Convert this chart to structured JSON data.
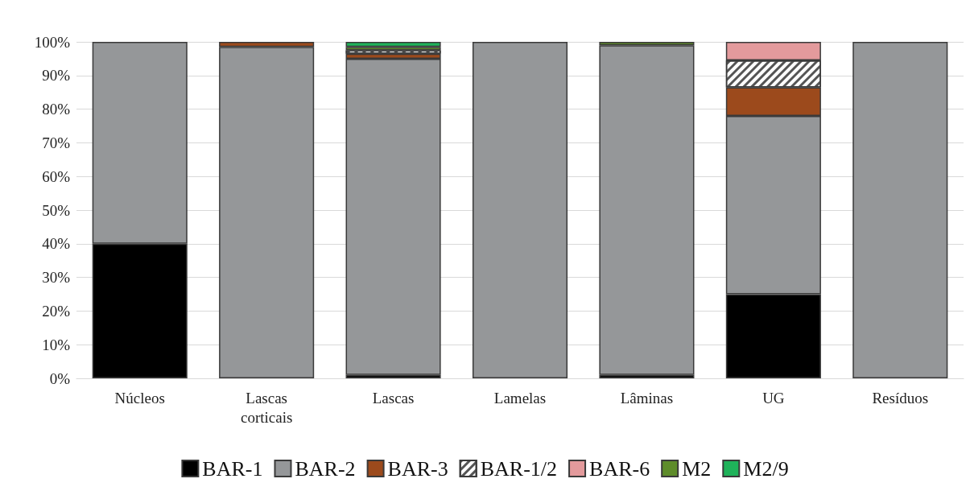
{
  "chart_data": {
    "type": "bar",
    "stacked": true,
    "categories": [
      "Núcleos",
      "Lascas\ncorticais",
      "Lascas",
      "Lamelas",
      "Lâminas",
      "UG",
      "Resíduos"
    ],
    "series": [
      {
        "name": "BAR-1",
        "color": "#000000",
        "values": [
          40,
          0,
          1,
          0,
          1,
          25,
          0
        ]
      },
      {
        "name": "BAR-2",
        "color": "#959799",
        "values": [
          60,
          98.5,
          94,
          100,
          98,
          53,
          100
        ]
      },
      {
        "name": "BAR-3",
        "color": "#9c4a1c",
        "values": [
          0,
          1.5,
          1.5,
          0,
          0,
          8.5,
          0
        ]
      },
      {
        "name": "BAR-1/2",
        "color": "#ffffff",
        "values": [
          0,
          0,
          1,
          0,
          0,
          8,
          0
        ]
      },
      {
        "name": "BAR-6",
        "color": "#e39a9c",
        "values": [
          0,
          0,
          0,
          0,
          0,
          5.5,
          0
        ]
      },
      {
        "name": "M2",
        "color": "#5e8c2a",
        "values": [
          0,
          0,
          1,
          0,
          1,
          0,
          0
        ]
      },
      {
        "name": "M2/9",
        "color": "#1fb25a",
        "values": [
          0,
          0,
          1.5,
          0,
          0,
          0,
          0
        ]
      }
    ],
    "ylim": [
      0,
      100
    ],
    "yticks": [
      {
        "value": 0,
        "label": "0%"
      },
      {
        "value": 10,
        "label": "10%"
      },
      {
        "value": 20,
        "label": "20%"
      },
      {
        "value": 30,
        "label": "30%"
      },
      {
        "value": 40,
        "label": "40%"
      },
      {
        "value": 50,
        "label": "50%"
      },
      {
        "value": 60,
        "label": "60%"
      },
      {
        "value": 70,
        "label": "70%"
      },
      {
        "value": 80,
        "label": "80%"
      },
      {
        "value": 90,
        "label": "90%"
      },
      {
        "value": 100,
        "label": "100%"
      }
    ],
    "grid": "y",
    "legend": "bottom"
  }
}
